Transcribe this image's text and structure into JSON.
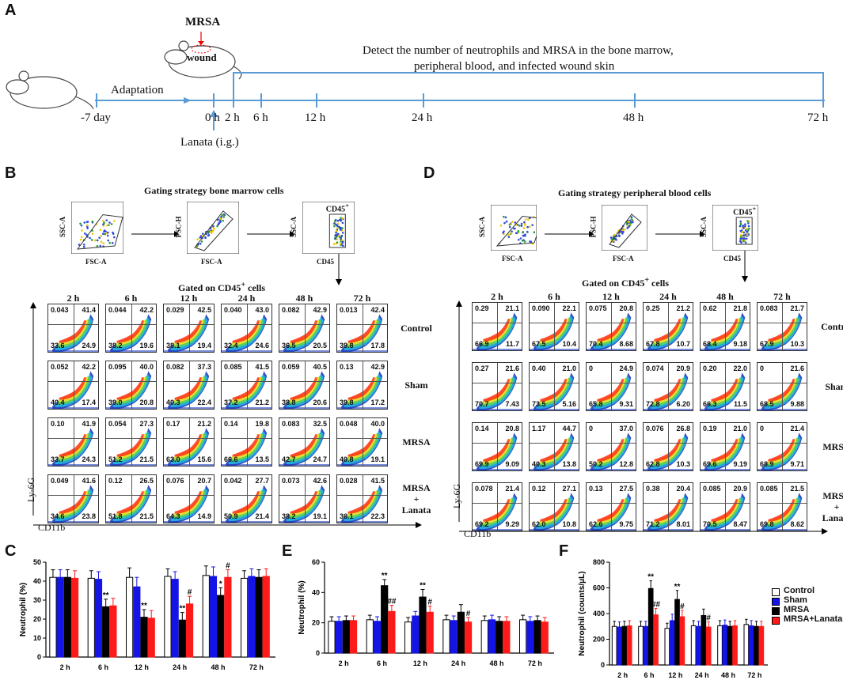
{
  "panels": {
    "A": "A",
    "B": "B",
    "C": "C",
    "D": "D",
    "E": "E",
    "F": "F"
  },
  "timeline": {
    "mrsa_label": "MRSA",
    "wound_label": "wound",
    "adaptation": "Adaptation",
    "lanata": "Lanata (i.g.)",
    "detect_line1": "Detect the number of neutrophils and MRSA in the bone marrow,",
    "detect_line2": "peripheral blood, and infected wound skin",
    "ticks": [
      "-7 day",
      "0 h",
      "2 h",
      "6 h",
      "12 h",
      "24 h",
      "48 h",
      "72 h"
    ]
  },
  "gating_B": {
    "title": "Gating strategy bone marrow cells",
    "axes": [
      "SSC-A",
      "FSC-A",
      "FSC-H",
      "FSC-A",
      "SSC-A",
      "CD45"
    ],
    "cd45": "CD45",
    "cd45sup": "+",
    "gated": "Gated on CD45",
    "gated_sup": "+",
    "gated_tail": " cells"
  },
  "gating_D": {
    "title": "Gating strategy peripheral blood cells",
    "axes": [
      "SSC-A",
      "FSC-A",
      "FSC-H",
      "FSC-A",
      "SSC-A",
      "CD45"
    ],
    "cd45": "CD45",
    "cd45sup": "+",
    "gated": "Gated on CD45",
    "gated_sup": "+",
    "gated_tail": " cells"
  },
  "flow_axes": {
    "y": "Ly-6G",
    "x": "CD11b"
  },
  "times": [
    "2 h",
    "6 h",
    "12 h",
    "24 h",
    "48 h",
    "72 h"
  ],
  "groups": [
    "Control",
    "Sham",
    "MRSA",
    "MRSA\n+\nLanata"
  ],
  "flowB": [
    [
      [
        "0.043",
        "41.4",
        "33.6",
        "24.9"
      ],
      [
        "0.044",
        "42.2",
        "38.2",
        "19.6"
      ],
      [
        "0.029",
        "42.5",
        "38.1",
        "19.4"
      ],
      [
        "0.040",
        "43.0",
        "32.4",
        "24.6"
      ],
      [
        "0.082",
        "42.9",
        "36.5",
        "20.5"
      ],
      [
        "0.013",
        "42.4",
        "39.8",
        "17.8"
      ]
    ],
    [
      [
        "0.052",
        "42.2",
        "40.4",
        "17.4"
      ],
      [
        "0.095",
        "40.0",
        "39.0",
        "20.8"
      ],
      [
        "0.082",
        "37.3",
        "40.3",
        "22.4"
      ],
      [
        "0.085",
        "41.5",
        "37.2",
        "21.2"
      ],
      [
        "0.059",
        "40.5",
        "38.8",
        "20.6"
      ],
      [
        "0.13",
        "42.9",
        "39.8",
        "17.2"
      ]
    ],
    [
      [
        "0.10",
        "41.9",
        "33.7",
        "24.3"
      ],
      [
        "0.054",
        "27.3",
        "51.2",
        "21.5"
      ],
      [
        "0.17",
        "21.2",
        "63.0",
        "15.6"
      ],
      [
        "0.14",
        "19.8",
        "66.6",
        "13.5"
      ],
      [
        "0.083",
        "32.5",
        "42.7",
        "24.7"
      ],
      [
        "0.048",
        "40.0",
        "40.8",
        "19.1"
      ]
    ],
    [
      [
        "0.049",
        "41.6",
        "34.6",
        "23.8"
      ],
      [
        "0.12",
        "26.5",
        "51.8",
        "21.5"
      ],
      [
        "0.076",
        "20.7",
        "64.3",
        "14.9"
      ],
      [
        "0.042",
        "27.7",
        "50.9",
        "21.4"
      ],
      [
        "0.073",
        "42.6",
        "38.2",
        "19.1"
      ],
      [
        "0.028",
        "41.5",
        "36.1",
        "22.3"
      ]
    ]
  ],
  "flowD": [
    [
      [
        "0.29",
        "21.1",
        "66.9",
        "11.7"
      ],
      [
        "0.090",
        "22.1",
        "67.5",
        "10.4"
      ],
      [
        "0.075",
        "20.8",
        "70.4",
        "8.68"
      ],
      [
        "0.25",
        "21.2",
        "67.8",
        "10.7"
      ],
      [
        "0.62",
        "21.8",
        "68.4",
        "9.18"
      ],
      [
        "0.083",
        "21.7",
        "67.9",
        "10.3"
      ]
    ],
    [
      [
        "0.27",
        "21.6",
        "70.7",
        "7.43"
      ],
      [
        "0.40",
        "21.0",
        "73.5",
        "5.16"
      ],
      [
        "0",
        "24.9",
        "65.8",
        "9.31"
      ],
      [
        "0.074",
        "20.9",
        "72.8",
        "6.20"
      ],
      [
        "0.20",
        "22.0",
        "66.3",
        "11.5"
      ],
      [
        "0",
        "21.6",
        "68.5",
        "9.88"
      ]
    ],
    [
      [
        "0.14",
        "20.8",
        "69.9",
        "9.09"
      ],
      [
        "1.17",
        "44.7",
        "40.3",
        "13.8"
      ],
      [
        "0",
        "37.0",
        "50.2",
        "12.8"
      ],
      [
        "0.076",
        "26.8",
        "62.8",
        "10.3"
      ],
      [
        "0.19",
        "21.0",
        "69.6",
        "9.19"
      ],
      [
        "0",
        "21.4",
        "68.9",
        "9.71"
      ]
    ],
    [
      [
        "0.078",
        "21.4",
        "69.2",
        "9.29"
      ],
      [
        "0.12",
        "27.1",
        "62.0",
        "10.8"
      ],
      [
        "0.13",
        "27.5",
        "62.6",
        "9.75"
      ],
      [
        "0.38",
        "20.4",
        "71.2",
        "8.01"
      ],
      [
        "0.085",
        "20.9",
        "70.5",
        "8.47"
      ],
      [
        "0.085",
        "21.5",
        "69.8",
        "8.62"
      ]
    ]
  ],
  "legend": [
    "Control",
    "Sham",
    "MRSA",
    "MRSA+Lanata"
  ],
  "colors": {
    "control": "#ffffff",
    "sham": "#1414e6",
    "mrsa": "#000000",
    "lanata": "#ff1a1a",
    "axis": "#5b9bd5"
  },
  "chart_data": [
    {
      "type": "bar",
      "title": "C",
      "ylabel": "Neutrophil (%)",
      "ylim": [
        0,
        50
      ],
      "yticks": [
        "0",
        "10",
        "20",
        "30",
        "40",
        "50"
      ],
      "categories": [
        "2 h",
        "6 h",
        "12 h",
        "24 h",
        "48 h",
        "72 h"
      ],
      "series": [
        {
          "name": "Control",
          "values": [
            42,
            41.5,
            42,
            42.5,
            43,
            41.5
          ],
          "err": [
            4,
            4,
            5,
            4,
            5,
            4
          ]
        },
        {
          "name": "Sham",
          "values": [
            42,
            41,
            37,
            41,
            42.5,
            42.5
          ],
          "err": [
            4,
            4,
            5,
            4,
            5,
            4
          ]
        },
        {
          "name": "MRSA",
          "values": [
            42,
            26.5,
            21,
            19.5,
            32.5,
            42
          ],
          "err": [
            4,
            4,
            4,
            4,
            4,
            4
          ]
        },
        {
          "name": "MRSA+Lanata",
          "values": [
            41.5,
            27,
            20.5,
            28,
            42,
            42.5
          ],
          "err": [
            4,
            4,
            4,
            4,
            4,
            4
          ]
        }
      ],
      "annotations": [
        {
          "cat": 1,
          "s": 2,
          "text": "**"
        },
        {
          "cat": 2,
          "s": 2,
          "text": "**"
        },
        {
          "cat": 3,
          "s": 2,
          "text": "**"
        },
        {
          "cat": 3,
          "s": 3,
          "text": "#"
        },
        {
          "cat": 4,
          "s": 2,
          "text": "*"
        },
        {
          "cat": 4,
          "s": 3,
          "text": "#"
        }
      ]
    },
    {
      "type": "bar",
      "title": "E",
      "ylabel": "Neutrophil (%)",
      "ylim": [
        0,
        60
      ],
      "yticks": [
        "0",
        "20",
        "40",
        "60"
      ],
      "categories": [
        "2 h",
        "6 h",
        "12 h",
        "24 h",
        "48 h",
        "72 h"
      ],
      "series": [
        {
          "name": "Control",
          "values": [
            21,
            22,
            20.5,
            22,
            21.5,
            22
          ],
          "err": [
            3,
            3,
            3,
            3,
            3,
            3
          ]
        },
        {
          "name": "Sham",
          "values": [
            21,
            21,
            24.5,
            21.5,
            22,
            21
          ],
          "err": [
            3,
            3,
            3,
            3,
            3,
            3
          ]
        },
        {
          "name": "MRSA",
          "values": [
            21.5,
            44.5,
            37,
            27,
            21,
            21.5
          ],
          "err": [
            3,
            4,
            5,
            5,
            3,
            3
          ]
        },
        {
          "name": "MRSA+Lanata",
          "values": [
            21.5,
            27.5,
            27,
            20.5,
            21,
            20.5
          ],
          "err": [
            3,
            4,
            4,
            3,
            3,
            3
          ]
        }
      ],
      "annotations": [
        {
          "cat": 1,
          "s": 2,
          "text": "**"
        },
        {
          "cat": 1,
          "s": 3,
          "text": "##"
        },
        {
          "cat": 2,
          "s": 2,
          "text": "**"
        },
        {
          "cat": 2,
          "s": 3,
          "text": "#"
        },
        {
          "cat": 3,
          "s": 3,
          "text": "#"
        }
      ]
    },
    {
      "type": "bar",
      "title": "F",
      "ylabel": "Neutrophil (counts/μL)",
      "ylim": [
        0,
        800
      ],
      "yticks": [
        "0",
        "200",
        "400",
        "600",
        "800"
      ],
      "categories": [
        "2 h",
        "6 h",
        "12 h",
        "24 h",
        "48 h",
        "72 h"
      ],
      "series": [
        {
          "name": "Control",
          "values": [
            300,
            300,
            285,
            305,
            305,
            315
          ],
          "err": [
            40,
            40,
            40,
            40,
            40,
            40
          ]
        },
        {
          "name": "Sham",
          "values": [
            295,
            300,
            345,
            300,
            310,
            305
          ],
          "err": [
            40,
            40,
            50,
            40,
            40,
            40
          ]
        },
        {
          "name": "MRSA",
          "values": [
            300,
            595,
            510,
            385,
            300,
            300
          ],
          "err": [
            40,
            60,
            70,
            50,
            40,
            40
          ]
        },
        {
          "name": "MRSA+Lanata",
          "values": [
            305,
            390,
            375,
            295,
            305,
            300
          ],
          "err": [
            40,
            50,
            50,
            40,
            40,
            40
          ]
        }
      ],
      "annotations": [
        {
          "cat": 1,
          "s": 2,
          "text": "**"
        },
        {
          "cat": 1,
          "s": 3,
          "text": "##"
        },
        {
          "cat": 2,
          "s": 2,
          "text": "**"
        },
        {
          "cat": 2,
          "s": 3,
          "text": "#"
        },
        {
          "cat": 3,
          "s": 3,
          "text": "#"
        }
      ]
    }
  ]
}
